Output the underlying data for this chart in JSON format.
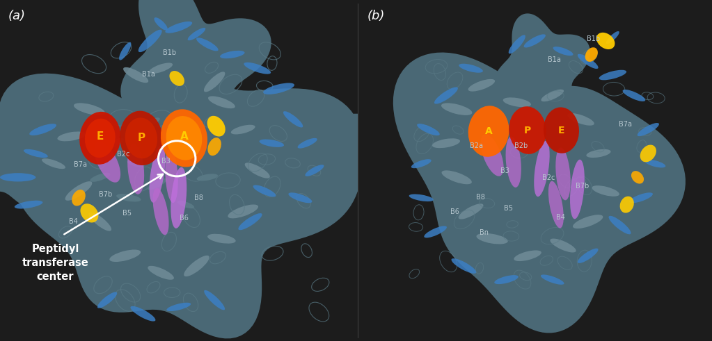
{
  "figsize": [
    10.23,
    4.91
  ],
  "dpi": 100,
  "background_color": "#1c1c1c",
  "panel_a_label": "(a)",
  "panel_b_label": "(b)",
  "label_color": "white",
  "label_fontsize": 13,
  "annotation_text": "Peptidyl\ntransferase\ncenter",
  "annotation_fontsize": 10.5,
  "annotation_fontweight": "bold",
  "tRNA_label_fontsize": 11,
  "structure_label_fontsize": 7,
  "border_color": "#ffffff",
  "panel_split": 0.502
}
